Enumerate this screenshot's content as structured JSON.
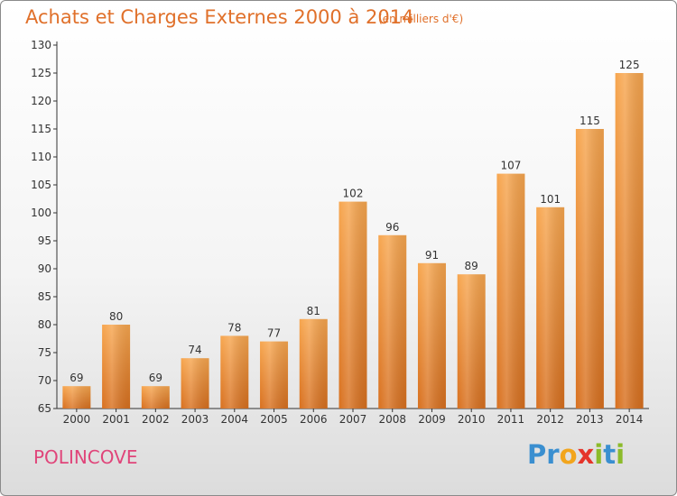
{
  "header": {
    "title": "Achats et Charges Externes 2000 à 2014",
    "unit": "(en milliers d'€)"
  },
  "footer": {
    "city": "POLINCOVE",
    "logo_text": "Proxiti"
  },
  "colors": {
    "title": "#e0702a",
    "city": "#e0457a",
    "bar_light": "#f7a64f",
    "bar_dark": "#d8701f"
  },
  "chart_data": {
    "type": "bar",
    "title": "Achats et Charges Externes 2000 à 2014",
    "subtitle": "(en milliers d'€)",
    "categories": [
      "2000",
      "2001",
      "2002",
      "2003",
      "2004",
      "2005",
      "2006",
      "2007",
      "2008",
      "2009",
      "2010",
      "2011",
      "2012",
      "2013",
      "2014"
    ],
    "values": [
      69,
      80,
      69,
      74,
      78,
      77,
      81,
      102,
      96,
      91,
      89,
      107,
      101,
      115,
      125
    ],
    "ylim": [
      65,
      130
    ],
    "yticks": [
      65,
      70,
      75,
      80,
      85,
      90,
      95,
      100,
      105,
      110,
      115,
      120,
      125,
      130
    ],
    "grid": false,
    "data_labels": true
  }
}
